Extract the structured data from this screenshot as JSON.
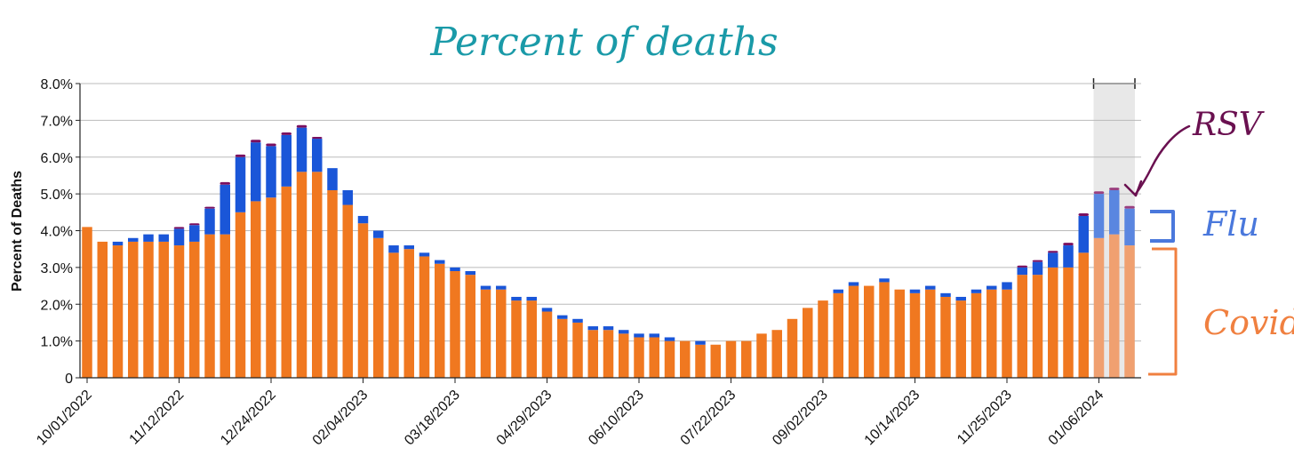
{
  "chart_data": {
    "type": "bar",
    "stacked": true,
    "title": "Percent of deaths",
    "ylabel": "Percent of Deaths",
    "xlabel": "",
    "ylim": [
      0,
      8
    ],
    "y_ticks": [
      "0",
      "1.0%",
      "2.0%",
      "3.0%",
      "4.0%",
      "5.0%",
      "6.0%",
      "7.0%",
      "8.0%"
    ],
    "grid": true,
    "x_tick_labels": [
      "10/01/2022",
      "11/12/2022",
      "12/24/2022",
      "02/04/2023",
      "03/18/2023",
      "04/29/2023",
      "06/10/2023",
      "07/22/2023",
      "09/02/2023",
      "10/14/2023",
      "11/25/2023",
      "01/06/2024"
    ],
    "x_tick_every": 6,
    "highlight_last_n": 3,
    "colors": {
      "covid": "#f07820",
      "flu": "#1a56d8",
      "rsv": "#7a1060",
      "covid_faded": "#f0a070",
      "flu_faded": "#5a86e0",
      "rsv_faded": "#9a4080",
      "highlight": "#e8e8e8",
      "grid": "#bbbbbb"
    },
    "series": [
      {
        "name": "Covid",
        "values": [
          4.1,
          3.7,
          3.6,
          3.7,
          3.7,
          3.7,
          3.6,
          3.7,
          3.9,
          3.9,
          4.5,
          4.8,
          4.9,
          5.2,
          5.6,
          5.6,
          5.1,
          4.7,
          4.2,
          3.8,
          3.4,
          3.5,
          3.3,
          3.1,
          2.9,
          2.8,
          2.4,
          2.4,
          2.1,
          2.1,
          1.8,
          1.6,
          1.5,
          1.3,
          1.3,
          1.2,
          1.1,
          1.1,
          1.0,
          1.0,
          0.9,
          0.9,
          1.0,
          1.0,
          1.2,
          1.3,
          1.6,
          1.9,
          2.1,
          2.3,
          2.5,
          2.5,
          2.6,
          2.4,
          2.3,
          2.4,
          2.2,
          2.1,
          2.3,
          2.4,
          2.4,
          2.8,
          2.8,
          3.0,
          3.0,
          3.4,
          3.8,
          3.9,
          3.6
        ]
      },
      {
        "name": "Flu",
        "values": [
          0,
          0,
          0.1,
          0.1,
          0.2,
          0.2,
          0.45,
          0.45,
          0.7,
          1.35,
          1.5,
          1.6,
          1.4,
          1.4,
          1.2,
          0.9,
          0.6,
          0.4,
          0.2,
          0.2,
          0.2,
          0.1,
          0.1,
          0.1,
          0.1,
          0.1,
          0.1,
          0.1,
          0.1,
          0.1,
          0.1,
          0.1,
          0.1,
          0.1,
          0.1,
          0.1,
          0.1,
          0.1,
          0.1,
          0,
          0.1,
          0,
          0,
          0,
          0,
          0,
          0,
          0,
          0,
          0.1,
          0.1,
          0,
          0.1,
          0,
          0.1,
          0.1,
          0.1,
          0.1,
          0.1,
          0.1,
          0.2,
          0.2,
          0.35,
          0.4,
          0.6,
          1.0,
          1.2,
          1.2,
          1.0
        ]
      },
      {
        "name": "RSV",
        "values": [
          0,
          0,
          0,
          0,
          0,
          0,
          0.05,
          0.05,
          0.05,
          0.07,
          0.07,
          0.07,
          0.07,
          0.07,
          0.07,
          0.05,
          0,
          0,
          0,
          0,
          0,
          0,
          0,
          0,
          0,
          0,
          0,
          0,
          0,
          0,
          0,
          0,
          0,
          0,
          0,
          0,
          0,
          0,
          0,
          0,
          0,
          0,
          0,
          0,
          0,
          0,
          0,
          0,
          0,
          0,
          0,
          0,
          0,
          0,
          0,
          0,
          0,
          0,
          0,
          0,
          0,
          0.05,
          0.05,
          0.05,
          0.07,
          0.07,
          0.07,
          0.07,
          0.07
        ]
      }
    ],
    "annotations": {
      "rsv": "RSV",
      "flu": "Flu",
      "covid": "Covid"
    }
  }
}
